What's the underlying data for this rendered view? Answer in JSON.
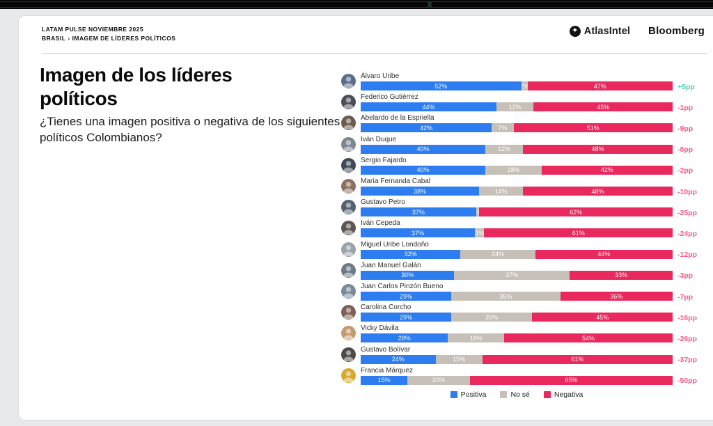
{
  "header": {
    "kicker": "LATAM PULSE NOVIEMBRE 2025",
    "breadcrumb_root": "BRASIL",
    "breadcrumb_sep": "›",
    "breadcrumb_page": "IMAGEM DE LÍDERES POLÍTICOS",
    "logo_atlas": "AtlasIntel",
    "logo_atlas_mark": "four-point-star",
    "logo_bloomberg": "Bloomberg"
  },
  "chart_data": {
    "type": "bar",
    "variant": "horizontal-stacked-100pct",
    "title": "Imagen de los líderes políticos",
    "question": "¿Tienes una imagen positiva o negativa de los siguientes políticos Colombianos?",
    "unit": "%",
    "legend": [
      "Positiva",
      "No sé",
      "Negativa"
    ],
    "legend_position": "bottom-center",
    "series_colors": {
      "positiva": "#2d7df0",
      "no_se": "#c7c0b9",
      "negativa": "#e9285d"
    },
    "net_colors": {
      "positive": "#56c9b1",
      "negative": "#f25d86"
    },
    "leaders": [
      {
        "name": "Álvaro Uribe",
        "positiva": 52,
        "no_se": 2,
        "negativa": 47,
        "net": "+5pp",
        "avatar_color": "#5a6e8c"
      },
      {
        "name": "Federico Gutiérrez",
        "positiva": 44,
        "no_se": 12,
        "negativa": 45,
        "net": "-1pp",
        "avatar_color": "#4a4f57"
      },
      {
        "name": "Abelardo de la Espriella",
        "positiva": 42,
        "no_se": 7,
        "negativa": 51,
        "net": "-9pp",
        "avatar_color": "#6b5a4e"
      },
      {
        "name": "Iván Duque",
        "positiva": 40,
        "no_se": 12,
        "negativa": 48,
        "net": "-8pp",
        "avatar_color": "#7d8691"
      },
      {
        "name": "Sergio Fajardo",
        "positiva": 40,
        "no_se": 18,
        "negativa": 42,
        "net": "-2pp",
        "avatar_color": "#3f4a56"
      },
      {
        "name": "María Fernanda Cabal",
        "positiva": 38,
        "no_se": 14,
        "negativa": 48,
        "net": "-10pp",
        "avatar_color": "#8c6f5e"
      },
      {
        "name": "Gustavo Petro",
        "positiva": 37,
        "no_se": 1,
        "negativa": 62,
        "net": "-25pp",
        "avatar_color": "#54616e"
      },
      {
        "name": "Iván Cepeda",
        "positiva": 37,
        "no_se": 3,
        "negativa": 61,
        "net": "-24pp",
        "avatar_color": "#5d564e"
      },
      {
        "name": "Miguel Uribe Londoño",
        "positiva": 32,
        "no_se": 24,
        "negativa": 44,
        "net": "-12pp",
        "avatar_color": "#9aa2ac"
      },
      {
        "name": "Juan Manuel Galán",
        "positiva": 30,
        "no_se": 37,
        "negativa": 33,
        "net": "-3pp",
        "avatar_color": "#6e7a86"
      },
      {
        "name": "Juan Carlos Pinzón Bueno",
        "positiva": 29,
        "no_se": 35,
        "negativa": 36,
        "net": "-7pp",
        "avatar_color": "#7a8a99"
      },
      {
        "name": "Carolina Corcho",
        "positiva": 29,
        "no_se": 26,
        "negativa": 45,
        "net": "-16pp",
        "avatar_color": "#7c5f55"
      },
      {
        "name": "Vicky Dávila",
        "positiva": 28,
        "no_se": 18,
        "negativa": 54,
        "net": "-26pp",
        "avatar_color": "#c59a6d"
      },
      {
        "name": "Gustavo Bolívar",
        "positiva": 24,
        "no_se": 15,
        "negativa": 61,
        "net": "-37pp",
        "avatar_color": "#4e4a45"
      },
      {
        "name": "Francia Márquez",
        "positiva": 15,
        "no_se": 20,
        "negativa": 65,
        "net": "-50pp",
        "avatar_color": "#d9a92e"
      }
    ]
  }
}
